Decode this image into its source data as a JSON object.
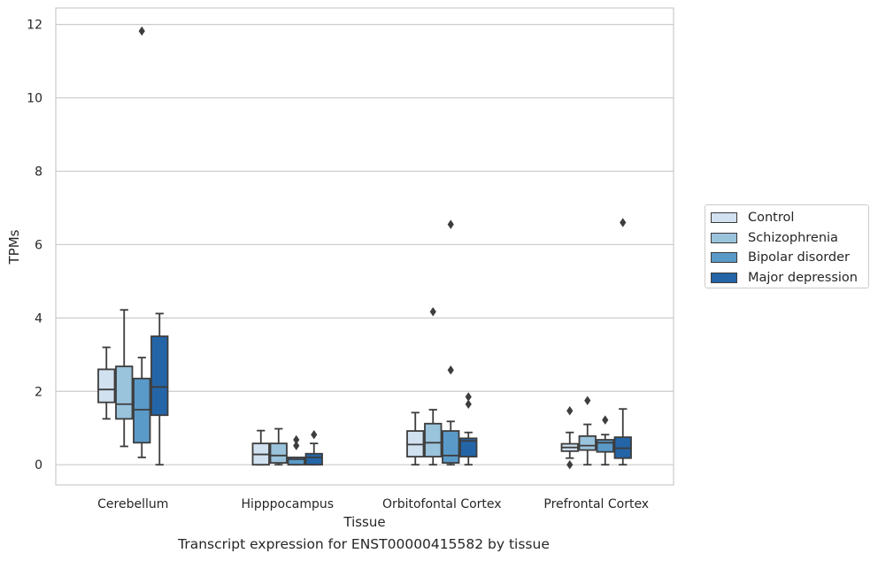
{
  "caption": "Transcript expression for ENST00000415582 by tissue",
  "chart_data": {
    "type": "box",
    "title": "",
    "xlabel": "Tissue",
    "ylabel": "TPMs",
    "ylim": [
      -0.55,
      12.45
    ],
    "yticks": [
      0,
      2,
      4,
      6,
      8,
      10,
      12
    ],
    "grid": true,
    "legend_position": "right",
    "categories": [
      "Cerebellum",
      "Hipppocampus",
      "Orbitofontal Cortex",
      "Prefrontal Cortex"
    ],
    "series": [
      {
        "name": "Control",
        "color": "#d1e1f0",
        "boxes": [
          {
            "whislo": 1.25,
            "q1": 1.7,
            "med": 2.05,
            "q3": 2.6,
            "whishi": 3.2,
            "fliers": []
          },
          {
            "whislo": 0.0,
            "q1": 0.0,
            "med": 0.28,
            "q3": 0.58,
            "whishi": 0.93,
            "fliers": []
          },
          {
            "whislo": 0.0,
            "q1": 0.22,
            "med": 0.55,
            "q3": 0.92,
            "whishi": 1.42,
            "fliers": []
          },
          {
            "whislo": 0.18,
            "q1": 0.37,
            "med": 0.47,
            "q3": 0.57,
            "whishi": 0.88,
            "fliers": [
              1.47,
              0.0
            ]
          }
        ]
      },
      {
        "name": "Schizophrenia",
        "color": "#9ac3dc",
        "boxes": [
          {
            "whislo": 0.5,
            "q1": 1.25,
            "med": 1.65,
            "q3": 2.68,
            "whishi": 4.22,
            "fliers": []
          },
          {
            "whislo": 0.0,
            "q1": 0.05,
            "med": 0.25,
            "q3": 0.58,
            "whishi": 0.98,
            "fliers": []
          },
          {
            "whislo": 0.0,
            "q1": 0.22,
            "med": 0.6,
            "q3": 1.12,
            "whishi": 1.5,
            "fliers": [
              4.17
            ]
          },
          {
            "whislo": 0.0,
            "q1": 0.4,
            "med": 0.52,
            "q3": 0.78,
            "whishi": 1.1,
            "fliers": [
              1.75
            ]
          }
        ]
      },
      {
        "name": "Bipolar disorder",
        "color": "#5a9ac8",
        "boxes": [
          {
            "whislo": 0.2,
            "q1": 0.6,
            "med": 1.5,
            "q3": 2.35,
            "whishi": 2.92,
            "fliers": [
              11.82
            ]
          },
          {
            "whislo": 0.0,
            "q1": 0.0,
            "med": 0.15,
            "q3": 0.2,
            "whishi": 0.2,
            "fliers": [
              0.68,
              0.52
            ]
          },
          {
            "whislo": 0.0,
            "q1": 0.05,
            "med": 0.25,
            "q3": 0.92,
            "whishi": 1.18,
            "fliers": [
              6.55,
              2.58
            ]
          },
          {
            "whislo": 0.0,
            "q1": 0.35,
            "med": 0.6,
            "q3": 0.68,
            "whishi": 0.82,
            "fliers": [
              1.22
            ]
          }
        ]
      },
      {
        "name": "Major depression",
        "color": "#2465a7",
        "boxes": [
          {
            "whislo": 0.0,
            "q1": 1.35,
            "med": 2.12,
            "q3": 3.5,
            "whishi": 4.12,
            "fliers": []
          },
          {
            "whislo": 0.0,
            "q1": 0.0,
            "med": 0.2,
            "q3": 0.3,
            "whishi": 0.58,
            "fliers": [
              0.82
            ]
          },
          {
            "whislo": 0.0,
            "q1": 0.22,
            "med": 0.65,
            "q3": 0.72,
            "whishi": 0.88,
            "fliers": [
              1.85,
              1.65
            ]
          },
          {
            "whislo": 0.0,
            "q1": 0.18,
            "med": 0.45,
            "q3": 0.75,
            "whishi": 1.52,
            "fliers": [
              6.6
            ]
          }
        ]
      }
    ]
  }
}
